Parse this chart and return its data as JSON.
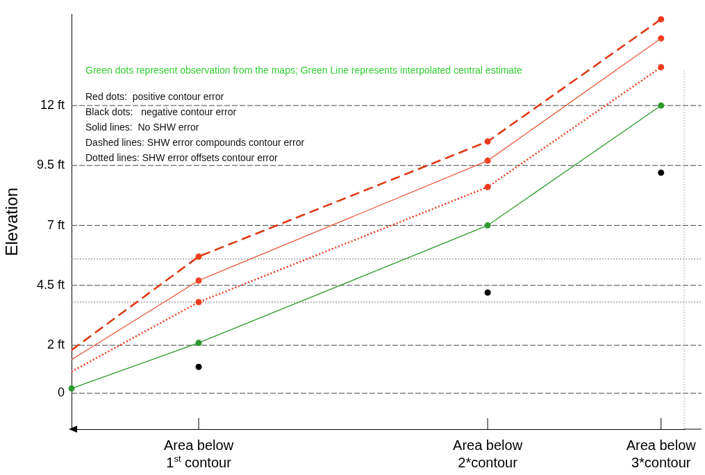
{
  "chart_data": {
    "type": "line",
    "ylabel": "Elevation",
    "categories": [
      null,
      null,
      null,
      null,
      null,
      null,
      null,
      null,
      null,
      null,
      null,
      "Area below 1$^{st}$ contour",
      null,
      null,
      null,
      null,
      null,
      null,
      null,
      null,
      null,
      null,
      null,
      null,
      null,
      null,
      null,
      null,
      null,
      null,
      null,
      null,
      null,
      null,
      null,
      null,
      "Area below 2*contour",
      null,
      null,
      null,
      null,
      null,
      null,
      null,
      null,
      null,
      null,
      null,
      null,
      null,
      null,
      "Area below 3*contour",
      null,
      null
    ],
    "ylim": [
      -1.5,
      15.8
    ],
    "yticks": [
      {
        "value": 0,
        "label": "0"
      },
      {
        "value": 2,
        "label": "2 ft"
      },
      {
        "value": 3.8,
        "label": null
      },
      {
        "value": 4.5,
        "label": "4.5 ft"
      },
      {
        "value": 5.6,
        "label": null
      },
      {
        "value": 7,
        "label": "7 ft"
      },
      {
        "value": 9.5,
        "label": "9.5 ft"
      },
      {
        "value": 12,
        "label": "12 ft"
      }
    ],
    "grid": "y",
    "legend": false,
    "series": [
      {
        "color": "#2e9a2e",
        "line_style": "solid",
        "marker": "circle",
        "values": [
          0.2,
          null,
          null,
          null,
          null,
          null,
          null,
          null,
          null,
          null,
          null,
          2.1,
          null,
          null,
          null,
          null,
          null,
          null,
          null,
          null,
          null,
          null,
          null,
          null,
          null,
          null,
          null,
          null,
          null,
          null,
          null,
          null,
          null,
          null,
          null,
          null,
          7.0,
          null,
          null,
          null,
          null,
          null,
          null,
          null,
          null,
          null,
          null,
          null,
          null,
          null,
          null,
          12.0,
          null,
          null
        ]
      },
      {
        "color": "#ec5a3c",
        "line_style": "solid",
        "marker": "none",
        "values": [
          1.4,
          null,
          null,
          null,
          null,
          null,
          null,
          null,
          null,
          null,
          null,
          4.7,
          null,
          null,
          null,
          null,
          null,
          null,
          null,
          null,
          null,
          null,
          null,
          null,
          null,
          null,
          null,
          null,
          null,
          null,
          null,
          null,
          null,
          null,
          null,
          null,
          9.7,
          null,
          null,
          null,
          null,
          null,
          null,
          null,
          null,
          null,
          null,
          null,
          null,
          null,
          null,
          14.8,
          null,
          null
        ]
      },
      {
        "color": "#e03a14",
        "line_style": "dashed",
        "marker": "none",
        "values": [
          1.8,
          null,
          null,
          null,
          null,
          null,
          null,
          null,
          null,
          null,
          null,
          5.7,
          null,
          null,
          null,
          null,
          null,
          null,
          null,
          null,
          null,
          null,
          null,
          null,
          null,
          null,
          null,
          null,
          null,
          null,
          null,
          null,
          null,
          null,
          null,
          null,
          10.5,
          null,
          null,
          null,
          null,
          null,
          null,
          null,
          null,
          null,
          null,
          null,
          null,
          null,
          null,
          15.6,
          null,
          null
        ]
      },
      {
        "color": "#ec3a1c",
        "line_style": "dotted",
        "marker": "none",
        "values": [
          0.9,
          null,
          null,
          null,
          null,
          null,
          null,
          null,
          null,
          null,
          null,
          3.8,
          null,
          null,
          null,
          null,
          null,
          null,
          null,
          null,
          null,
          null,
          null,
          null,
          null,
          null,
          null,
          null,
          null,
          null,
          null,
          null,
          null,
          null,
          null,
          null,
          8.6,
          null,
          null,
          null,
          null,
          null,
          null,
          null,
          null,
          null,
          null,
          null,
          null,
          null,
          null,
          13.6,
          null,
          null
        ]
      },
      {
        "type": "scatter",
        "color": "#f03c1e",
        "marker": "circle",
        "values": [
          null,
          null,
          null,
          null,
          null,
          null,
          null,
          null,
          null,
          null,
          null,
          5.7,
          null,
          null,
          null,
          null,
          null,
          null,
          null,
          null,
          null,
          null,
          null,
          null,
          null,
          null,
          null,
          null,
          null,
          null,
          null,
          null,
          null,
          null,
          null,
          null,
          10.5,
          null,
          null,
          null,
          null,
          null,
          null,
          null,
          null,
          null,
          null,
          null,
          null,
          null,
          null,
          15.6,
          null,
          null
        ]
      },
      {
        "type": "scatter",
        "color": "#f03c1e",
        "marker": "circle",
        "values": [
          null,
          null,
          null,
          null,
          null,
          null,
          null,
          null,
          null,
          null,
          null,
          4.7,
          null,
          null,
          null,
          null,
          null,
          null,
          null,
          null,
          null,
          null,
          null,
          null,
          null,
          null,
          null,
          null,
          null,
          null,
          null,
          null,
          null,
          null,
          null,
          null,
          9.7,
          null,
          null,
          null,
          null,
          null,
          null,
          null,
          null,
          null,
          null,
          null,
          null,
          null,
          null,
          14.8,
          null,
          null
        ]
      },
      {
        "type": "scatter",
        "color": "#f03c1e",
        "marker": "circle",
        "values": [
          null,
          null,
          null,
          null,
          null,
          null,
          null,
          null,
          null,
          null,
          null,
          3.8,
          null,
          null,
          null,
          null,
          null,
          null,
          null,
          null,
          null,
          null,
          null,
          null,
          null,
          null,
          null,
          null,
          null,
          null,
          null,
          null,
          null,
          null,
          null,
          null,
          8.6,
          null,
          null,
          null,
          null,
          null,
          null,
          null,
          null,
          null,
          null,
          null,
          null,
          null,
          null,
          13.6,
          null,
          null
        ]
      },
      {
        "type": "scatter",
        "color": "#000000",
        "marker": "circle",
        "values": [
          null,
          null,
          null,
          null,
          null,
          null,
          null,
          null,
          null,
          null,
          null,
          1.1,
          null,
          null,
          null,
          null,
          null,
          null,
          null,
          null,
          null,
          null,
          null,
          null,
          null,
          null,
          null,
          null,
          null,
          null,
          null,
          null,
          null,
          null,
          null,
          null,
          4.2,
          null,
          null,
          null,
          null,
          null,
          null,
          null,
          null,
          null,
          null,
          null,
          null,
          null,
          null,
          9.2,
          null,
          null
        ]
      }
    ],
    "annotations": [
      "Green dots represent observation from the maps; Green Line represents interpolated central estimate",
      "Red dots:  positive contour error",
      "Black dots:   negative contour error",
      "Solid lines:  No SHW error",
      "Dashed lines: SHW error compounds contour error",
      "Dotted lines: SHW error offsets contour error"
    ]
  }
}
